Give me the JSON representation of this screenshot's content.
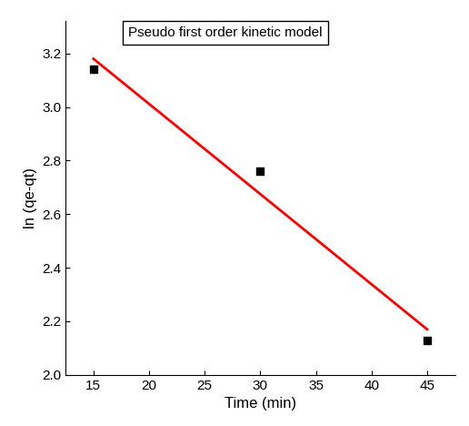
{
  "chart_data": {
    "type": "scatter",
    "title": "Pseudo first order kinetic model",
    "x_label": "Time (min)",
    "y_label": "ln (qe-qt)",
    "series": [
      {
        "type": "scatter",
        "color": "#000000",
        "marker": "square",
        "x": [
          15,
          30,
          45
        ],
        "values": [
          3.14,
          2.76,
          2.13
        ]
      },
      {
        "type": "line",
        "color": "#ff0000",
        "line_style": "solid",
        "x": [
          15,
          45
        ],
        "values": [
          3.18,
          2.17
        ]
      }
    ],
    "xlim": [
      12.5,
      47.5
    ],
    "xticks": [
      15,
      20,
      25,
      30,
      35,
      40,
      45
    ],
    "ylim": [
      2.0,
      3.32
    ],
    "yticks": [
      {
        "value": 2.0,
        "label": "2.0"
      },
      2.2,
      2.4,
      2.6,
      2.8,
      {
        "value": 3.0,
        "label": "3.0"
      },
      3.2
    ],
    "grid": false
  }
}
